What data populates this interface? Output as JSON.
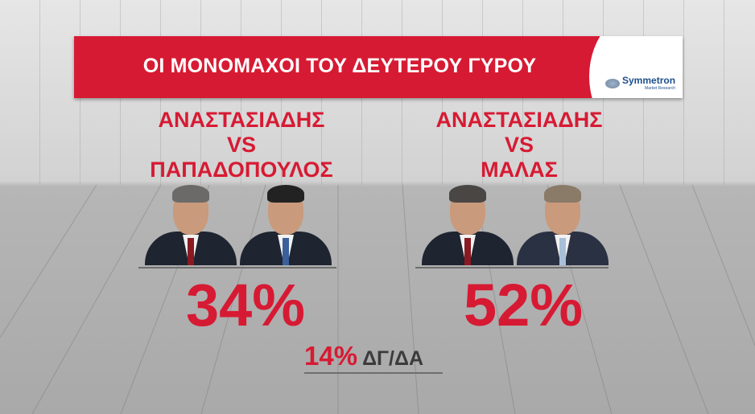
{
  "banner": {
    "title": "ΟΙ ΜΟΝΟΜΑΧΟΙ ΤΟΥ ΔΕΥΤΕΡΟΥ ΓΥΡΟΥ",
    "logo_name": "Symmetron",
    "logo_sub": "Market Research"
  },
  "matchups": [
    {
      "line1": "ΑΝΑΣΤΑΣΙΑΔΗΣ",
      "line2": "VS",
      "line3": "ΠΑΠΑΔΟΠΟΥΛΟΣ",
      "percent": "34%"
    },
    {
      "line1": "ΑΝΑΣΤΑΣΙΑΔΗΣ",
      "line2": "VS",
      "line3": "ΜΑΛΑΣ",
      "percent": "52%"
    }
  ],
  "undecided": {
    "percent": "14%",
    "label": "ΔΓ/ΔΑ"
  },
  "colors": {
    "accent": "#d71a33",
    "text_dark": "#3b3b3b",
    "logo": "#1d4f8c"
  }
}
